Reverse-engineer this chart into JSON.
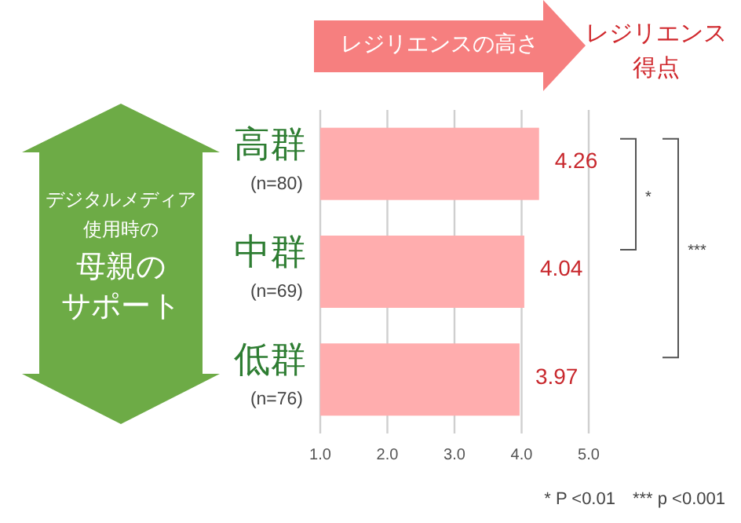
{
  "chart_data": {
    "type": "bar",
    "orientation": "horizontal",
    "categories": [
      "高群 (n=80)",
      "中群 (n=69)",
      "低群 (n=76)"
    ],
    "values": [
      4.26,
      4.04,
      3.97
    ],
    "color": "#ffadae",
    "xlim": [
      1,
      5
    ],
    "xticks": [
      {
        "value": 1,
        "label": "1.0"
      },
      {
        "value": 2,
        "label": "2.0"
      },
      {
        "value": 3,
        "label": "3.0"
      },
      {
        "value": 4,
        "label": "4.0"
      },
      {
        "value": 5,
        "label": "5.0"
      }
    ],
    "grid": "x",
    "data_labels": true,
    "ylabel": "デジタルメディア使用時の母親のサポート",
    "annotations": [
      "レジリエンスの高さ",
      "レジリエンス得点",
      "*",
      "***",
      "* P <0.01　*** p <0.001"
    ]
  }
}
